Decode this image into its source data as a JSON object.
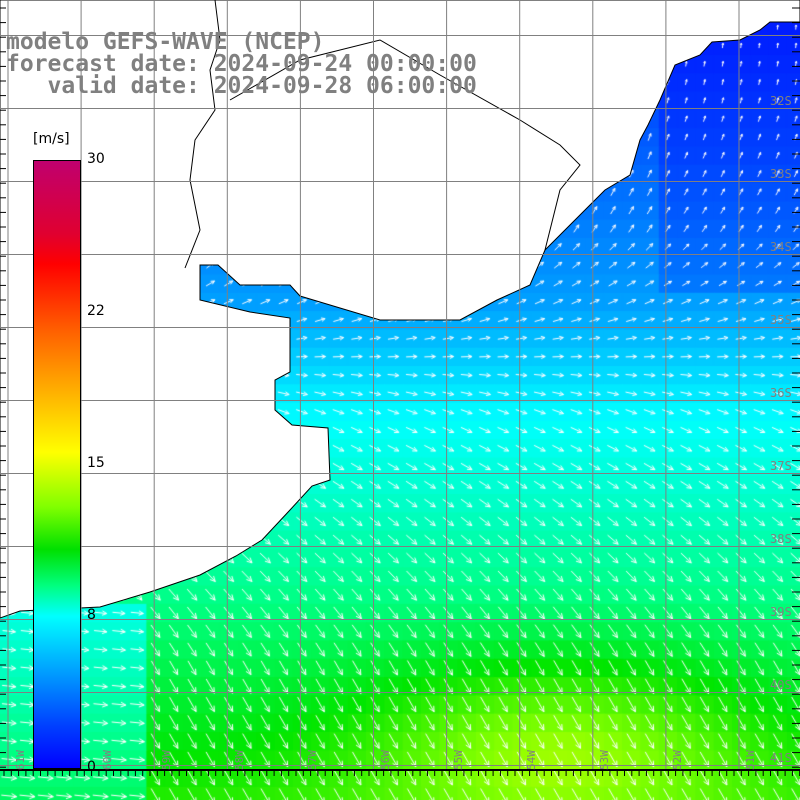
{
  "header": {
    "line1": "modelo GEFS-WAVE (NCEP)",
    "line2": "forecast date: 2024-09-24 00:00:00",
    "line3": "   valid date: 2024-09-28 06:00:00"
  },
  "colorbar": {
    "unit": "[m/s]",
    "ticks": [
      "30",
      "22",
      "15",
      "8",
      "0"
    ],
    "range": [
      0,
      30
    ]
  },
  "lat_labels": [
    "32S",
    "33S",
    "34S",
    "35S",
    "36S",
    "37S",
    "38S",
    "39S",
    "40S",
    "41S"
  ],
  "lon_labels": [
    "61W",
    "60W",
    "59W",
    "58W",
    "57W",
    "56W",
    "55W",
    "54W",
    "53W",
    "52W",
    "51W"
  ]
}
